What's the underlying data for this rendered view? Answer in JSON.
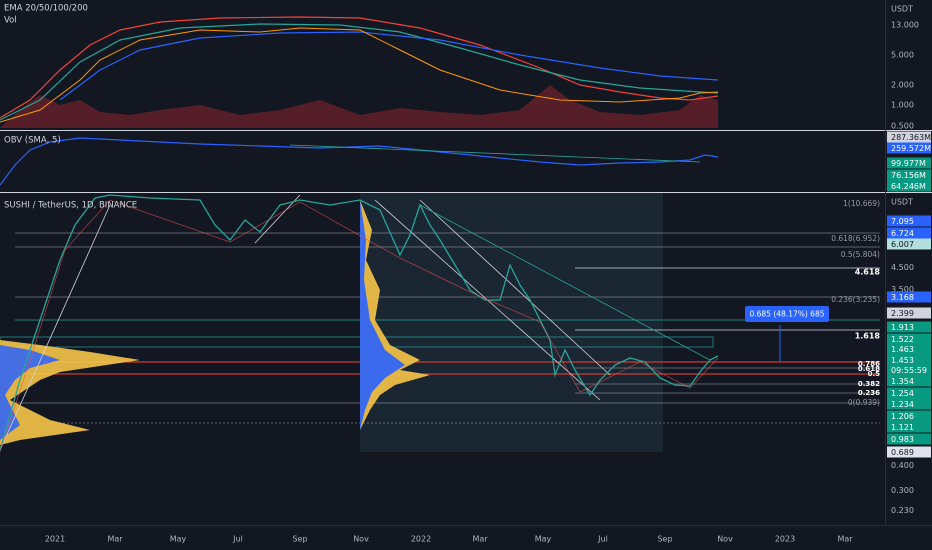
{
  "top_pane": {
    "legend": [
      "EMA 20/50/100/200",
      "Vol"
    ],
    "axis_unit": "USDT",
    "axis_labels": [
      "13.000",
      "5.000",
      "2.000",
      "1.000",
      "0.500"
    ]
  },
  "obv_pane": {
    "legend": "OBV (SMA, 5)",
    "tags": [
      "287.363M",
      "259.572M",
      "99.977M",
      "76.156M",
      "64.246M"
    ]
  },
  "main_pane": {
    "title": "SUSHI / TetherUS, 1D, BINANCE",
    "axis_unit": "USDT",
    "tags": [
      "7.095",
      "6.724",
      "6.007",
      "4.500",
      "3.500",
      "3.168",
      "2.399",
      "1.913",
      "1.522",
      "1.463",
      "1.453",
      "09:55:59",
      "1.354",
      "1.254",
      "1.234",
      "1.206",
      "1.121",
      "0.983",
      "0.689",
      "0.400",
      "0.300",
      "0.230"
    ],
    "fib_labels": [
      "1(10.669)",
      "0.618(6.952)",
      "0.5(5.804)",
      "4.618",
      "0.236(3.235)",
      "1.618",
      "0.786",
      "0.618",
      "0.5",
      "0.382",
      "0.236",
      "0(0.939)"
    ],
    "annotation": "0.685 (48.17%) 685"
  },
  "time_axis": [
    "2021",
    "Mar",
    "May",
    "Jul",
    "Sep",
    "Nov",
    "2022",
    "Mar",
    "May",
    "Jul",
    "Sep",
    "Nov",
    "2023",
    "Mar"
  ]
}
